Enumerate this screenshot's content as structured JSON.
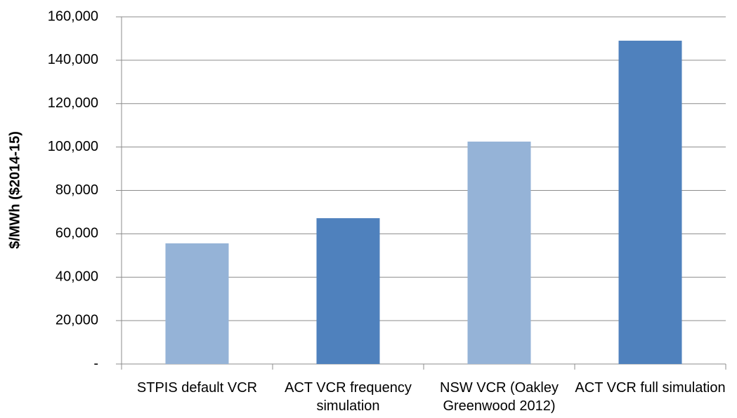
{
  "chart_data": {
    "type": "bar",
    "ylabel": "$/MWh ($2014-15)",
    "categories": [
      "STPIS default VCR",
      "ACT VCR frequency simulation",
      "NSW VCR (Oakley Greenwood 2012)",
      "ACT VCR full simulation"
    ],
    "values": [
      55600,
      67200,
      102500,
      149000
    ],
    "colors": [
      "#95b3d7",
      "#4f81bd",
      "#95b3d7",
      "#4f81bd"
    ],
    "ylim": [
      0,
      160000
    ],
    "yticks": [
      {
        "value": 0,
        "label": "-"
      },
      {
        "value": 20000,
        "label": "20,000"
      },
      {
        "value": 40000,
        "label": "40,000"
      },
      {
        "value": 60000,
        "label": "60,000"
      },
      {
        "value": 80000,
        "label": "80,000"
      },
      {
        "value": 100000,
        "label": "100,000"
      },
      {
        "value": 120000,
        "label": "120,000"
      },
      {
        "value": 140000,
        "label": "140,000"
      },
      {
        "value": 160000,
        "label": "160,000"
      }
    ],
    "grid": true
  }
}
